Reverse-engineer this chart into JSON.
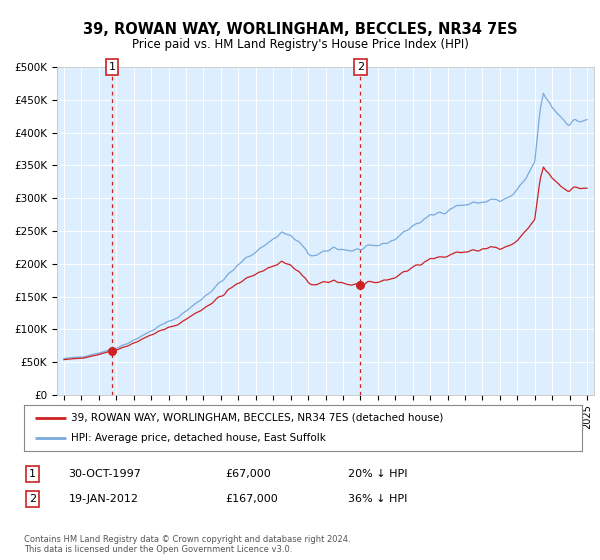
{
  "title": "39, ROWAN WAY, WORLINGHAM, BECCLES, NR34 7ES",
  "subtitle": "Price paid vs. HM Land Registry's House Price Index (HPI)",
  "sale1_price": 67000,
  "sale2_price": 167000,
  "hpi_line_color": "#7aaadd",
  "price_line_color": "#cc2222",
  "sale_dot_color": "#cc2222",
  "vline_color": "#cc2222",
  "plot_bg_color": "#ddeeff",
  "legend_label_price": "39, ROWAN WAY, WORLINGHAM, BECCLES, NR34 7ES (detached house)",
  "legend_label_hpi": "HPI: Average price, detached house, East Suffolk",
  "footer": "Contains HM Land Registry data © Crown copyright and database right 2024.\nThis data is licensed under the Open Government Licence v3.0.",
  "yticks": [
    0,
    50000,
    100000,
    150000,
    200000,
    250000,
    300000,
    350000,
    400000,
    450000,
    500000
  ],
  "ytick_labels": [
    "£0",
    "£50K",
    "£100K",
    "£150K",
    "£200K",
    "£250K",
    "£300K",
    "£350K",
    "£400K",
    "£450K",
    "£500K"
  ],
  "table_row1": [
    "1",
    "30-OCT-1997",
    "£67,000",
    "20% ↓ HPI"
  ],
  "table_row2": [
    "2",
    "19-JAN-2012",
    "£167,000",
    "36% ↓ HPI"
  ]
}
